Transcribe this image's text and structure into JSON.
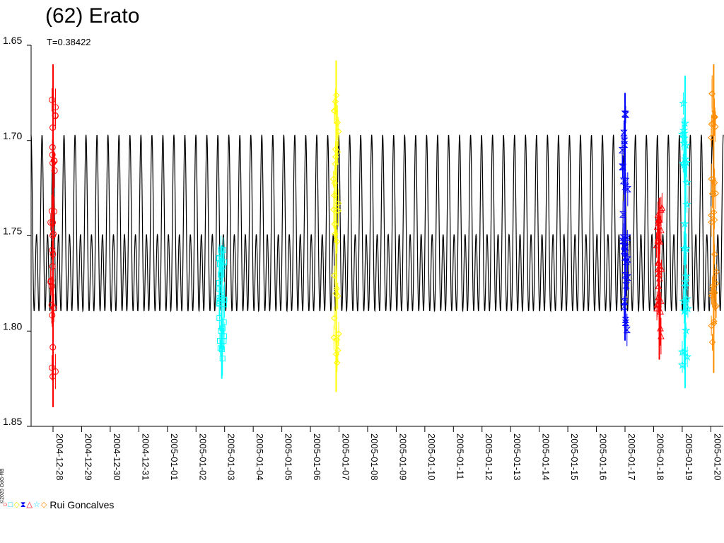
{
  "chart_data": {
    "type": "scatter",
    "title": "(62) Erato",
    "subtitle": "T=0.38422",
    "ylim": [
      1.85,
      1.65
    ],
    "y_ticks": [
      "1.65",
      "1.70",
      "1.75",
      "1.80",
      "1.85"
    ],
    "x_ticks": [
      "2004-12-28",
      "2004-12-29",
      "2004-12-30",
      "2004-12-31",
      "2005-01-01",
      "2005-01-02",
      "2005-01-03",
      "2005-01-04",
      "2005-01-05",
      "2005-01-06",
      "2005-01-07",
      "2005-01-08",
      "2005-01-09",
      "2005-01-10",
      "2005-01-11",
      "2005-01-12",
      "2005-01-13",
      "2005-01-14",
      "2005-01-15",
      "2005-01-16",
      "2005-01-17",
      "2005-01-18",
      "2005-01-19",
      "2005-01-20"
    ],
    "grid": false,
    "model_curve": {
      "period_days": 0.38422,
      "min": 1.697,
      "max": 1.813,
      "color": "#000000"
    },
    "series": [
      {
        "color": "#ff0000",
        "marker": "circle",
        "x_day": 0.0,
        "y_range": [
          1.675,
          1.826
        ],
        "err_range": [
          1.66,
          1.84
        ]
      },
      {
        "color": "#00ffff",
        "marker": "square",
        "x_day": 5.9,
        "y_range": [
          1.757,
          1.815
        ],
        "err_range": [
          1.755,
          1.825
        ]
      },
      {
        "color": "#ffff00",
        "marker": "diamond",
        "x_day": 9.9,
        "y_range": [
          1.672,
          1.818
        ],
        "err_range": [
          1.658,
          1.832
        ]
      },
      {
        "color": "#0000ff",
        "marker": "hourglass",
        "x_day": 20.0,
        "y_range": [
          1.686,
          1.8
        ],
        "err_range": [
          1.675,
          1.805
        ]
      },
      {
        "color": "#ff0000",
        "marker": "triangle",
        "x_day": 21.2,
        "y_range": [
          1.735,
          1.805
        ],
        "err_range": [
          1.73,
          1.815
        ]
      },
      {
        "color": "#00ffff",
        "marker": "star",
        "x_day": 22.1,
        "y_range": [
          1.678,
          1.818
        ],
        "err_range": [
          1.666,
          1.83
        ]
      },
      {
        "color": "#ff8c00",
        "marker": "diamond",
        "x_day": 23.1,
        "y_range": [
          1.675,
          1.808
        ],
        "err_range": [
          1.66,
          1.822
        ]
      }
    ]
  },
  "legend": {
    "observer": "Rui Goncalves"
  },
  "copyright": "©2020 OdG-RB",
  "colors": {
    "axis": "#000000",
    "background": "#ffffff"
  }
}
